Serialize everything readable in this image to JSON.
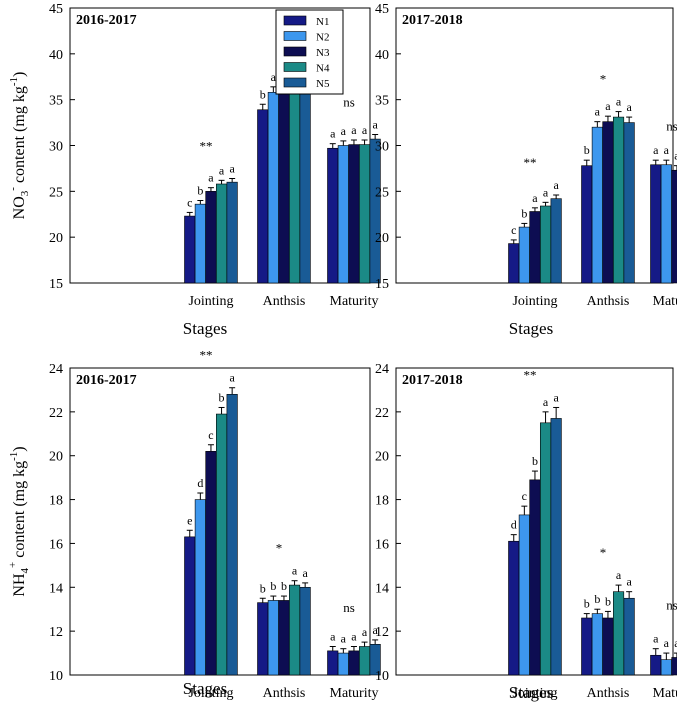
{
  "figure": {
    "ylabel_no3": {
      "pre": "NO",
      "sub": "3",
      "sup": "-",
      "mid": " content (mg kg",
      "sup2": "-1",
      "post": ")"
    },
    "ylabel_nh4": {
      "pre": "NH",
      "sub": "4",
      "sup": "+",
      "mid": " content (mg kg",
      "sup2": "-1",
      "post": ")"
    }
  },
  "legend": {
    "entries": [
      "N1",
      "N2",
      "N3",
      "N4",
      "N5"
    ]
  },
  "colors": {
    "N1": "#151a86",
    "N2": "#3d97ee",
    "N3": "#0d0d52",
    "N4": "#1b8a86",
    "N5": "#195b96"
  },
  "chart_data": [
    {
      "type": "bar",
      "panel": "NO3-2016-2017",
      "title": "2016-2017",
      "xlabel": "Stages",
      "ylabel": "NO3- content (mg kg-1)",
      "ylim": [
        15,
        45
      ],
      "yticks": [
        15,
        20,
        25,
        30,
        35,
        40,
        45
      ],
      "categories": [
        "Jointing",
        "Anthsis",
        "Maturity"
      ],
      "series": [
        {
          "name": "N1",
          "values": [
            22.3,
            33.9,
            29.7
          ],
          "errors": [
            0.4,
            0.6,
            0.5
          ]
        },
        {
          "name": "N2",
          "values": [
            23.6,
            35.8,
            30.0
          ],
          "errors": [
            0.4,
            0.6,
            0.5
          ]
        },
        {
          "name": "N3",
          "values": [
            25.0,
            35.7,
            30.1
          ],
          "errors": [
            0.4,
            0.6,
            0.5
          ]
        },
        {
          "name": "N4",
          "values": [
            25.8,
            36.3,
            30.1
          ],
          "errors": [
            0.4,
            0.6,
            0.5
          ]
        },
        {
          "name": "N5",
          "values": [
            26.0,
            36.7,
            30.7
          ],
          "errors": [
            0.4,
            0.6,
            0.5
          ]
        }
      ],
      "letters": [
        [
          "c",
          "b",
          "a",
          "a",
          "a"
        ],
        [
          "b",
          "a",
          "a",
          "a",
          "a"
        ],
        [
          "a",
          "a",
          "a",
          "a",
          "a"
        ]
      ],
      "significance": [
        "**",
        "*",
        "ns"
      ]
    },
    {
      "type": "bar",
      "panel": "NO3-2017-2018",
      "title": "2017-2018",
      "xlabel": "Stages",
      "ylabel": "NO3- content (mg kg-1)",
      "ylim": [
        15,
        45
      ],
      "yticks": [
        15,
        20,
        25,
        30,
        35,
        40,
        45
      ],
      "categories": [
        "Jointing",
        "Anthsis",
        "Maturity"
      ],
      "series": [
        {
          "name": "N1",
          "values": [
            19.3,
            27.8,
            27.9
          ],
          "errors": [
            0.4,
            0.6,
            0.5
          ]
        },
        {
          "name": "N2",
          "values": [
            21.1,
            32.0,
            27.9
          ],
          "errors": [
            0.4,
            0.6,
            0.5
          ]
        },
        {
          "name": "N3",
          "values": [
            22.8,
            32.6,
            27.3
          ],
          "errors": [
            0.4,
            0.6,
            0.5
          ]
        },
        {
          "name": "N4",
          "values": [
            23.4,
            33.1,
            28.1
          ],
          "errors": [
            0.4,
            0.6,
            0.5
          ]
        },
        {
          "name": "N5",
          "values": [
            24.2,
            32.5,
            27.4
          ],
          "errors": [
            0.4,
            0.6,
            0.5
          ]
        }
      ],
      "letters": [
        [
          "c",
          "b",
          "a",
          "a",
          "a"
        ],
        [
          "b",
          "a",
          "a",
          "a",
          "a"
        ],
        [
          "a",
          "a",
          "a",
          "a",
          "a"
        ]
      ],
      "significance": [
        "**",
        "*",
        "ns"
      ]
    },
    {
      "type": "bar",
      "panel": "NH4-2016-2017",
      "title": "2016-2017",
      "xlabel": "Stages",
      "ylabel": "NH4+ content (mg kg-1)",
      "ylim": [
        10,
        24
      ],
      "yticks": [
        10,
        12,
        14,
        16,
        18,
        20,
        22,
        24
      ],
      "categories": [
        "Jointing",
        "Anthsis",
        "Maturity"
      ],
      "series": [
        {
          "name": "N1",
          "values": [
            16.3,
            13.3,
            11.1
          ],
          "errors": [
            0.3,
            0.2,
            0.2
          ]
        },
        {
          "name": "N2",
          "values": [
            18.0,
            13.4,
            11.0
          ],
          "errors": [
            0.3,
            0.2,
            0.2
          ]
        },
        {
          "name": "N3",
          "values": [
            20.2,
            13.4,
            11.1
          ],
          "errors": [
            0.3,
            0.2,
            0.2
          ]
        },
        {
          "name": "N4",
          "values": [
            21.9,
            14.1,
            11.3
          ],
          "errors": [
            0.3,
            0.2,
            0.2
          ]
        },
        {
          "name": "N5",
          "values": [
            22.8,
            14.0,
            11.4
          ],
          "errors": [
            0.3,
            0.2,
            0.2
          ]
        }
      ],
      "letters": [
        [
          "e",
          "d",
          "c",
          "b",
          "a"
        ],
        [
          "b",
          "b",
          "b",
          "a",
          "a"
        ],
        [
          "a",
          "a",
          "a",
          "a",
          "a"
        ]
      ],
      "significance": [
        "**",
        "*",
        "ns"
      ]
    },
    {
      "type": "bar",
      "panel": "NH4-2017-2018",
      "title": "2017-2018",
      "xlabel": "Stages",
      "ylabel": "NH4+ content (mg kg-1)",
      "ylim": [
        10,
        24
      ],
      "yticks": [
        10,
        12,
        14,
        16,
        18,
        20,
        22,
        24
      ],
      "categories": [
        "Jointing",
        "Anthsis",
        "Maturity"
      ],
      "series": [
        {
          "name": "N1",
          "values": [
            16.1,
            12.6,
            10.9
          ],
          "errors": [
            0.3,
            0.2,
            0.3
          ]
        },
        {
          "name": "N2",
          "values": [
            17.3,
            12.8,
            10.7
          ],
          "errors": [
            0.4,
            0.2,
            0.3
          ]
        },
        {
          "name": "N3",
          "values": [
            18.9,
            12.6,
            10.8
          ],
          "errors": [
            0.4,
            0.3,
            0.2
          ]
        },
        {
          "name": "N4",
          "values": [
            21.5,
            13.8,
            11.3
          ],
          "errors": [
            0.5,
            0.3,
            0.3
          ]
        },
        {
          "name": "N5",
          "values": [
            21.7,
            13.5,
            11.4
          ],
          "errors": [
            0.5,
            0.3,
            0.3
          ]
        }
      ],
      "letters": [
        [
          "d",
          "c",
          "b",
          "a",
          "a"
        ],
        [
          "b",
          "b",
          "b",
          "a",
          "a"
        ],
        [
          "a",
          "a",
          "a",
          "a",
          "a"
        ]
      ],
      "significance": [
        "**",
        "*",
        "ns"
      ]
    }
  ]
}
